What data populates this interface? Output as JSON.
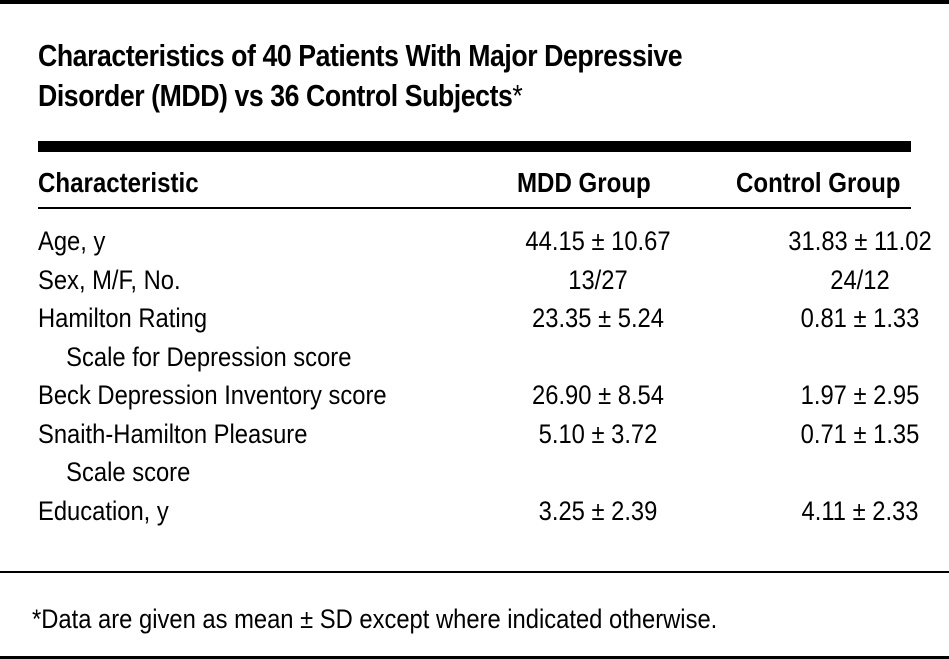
{
  "table": {
    "title_line1": "Characteristics of 40 Patients With Major Depressive",
    "title_line2": "Disorder (MDD) vs 36 Control Subjects",
    "title_marker": "*",
    "headers": {
      "characteristic": "Characteristic",
      "mdd": "MDD Group",
      "control": "Control Group"
    },
    "rows": [
      {
        "label": "Age, y",
        "label_cont": "",
        "mdd": "44.15 ± 10.67",
        "control": "31.83 ± 11.02"
      },
      {
        "label": "Sex, M/F, No.",
        "label_cont": "",
        "mdd": "13/27",
        "control": "24/12"
      },
      {
        "label": "Hamilton Rating",
        "label_cont": "Scale for Depression score",
        "mdd": "23.35 ± 5.24",
        "control": "0.81 ± 1.33"
      },
      {
        "label": "Beck Depression Inventory score",
        "label_cont": "",
        "mdd": "26.90 ± 8.54",
        "control": "1.97 ± 2.95"
      },
      {
        "label": "Snaith-Hamilton Pleasure",
        "label_cont": "Scale score",
        "mdd": "5.10 ± 3.72",
        "control": "0.71 ± 1.35"
      },
      {
        "label": "Education, y",
        "label_cont": "",
        "mdd": "3.25 ± 2.39",
        "control": "4.11 ± 2.33"
      }
    ],
    "footnote": "*Data are given as mean ± SD except where indicated otherwise."
  }
}
